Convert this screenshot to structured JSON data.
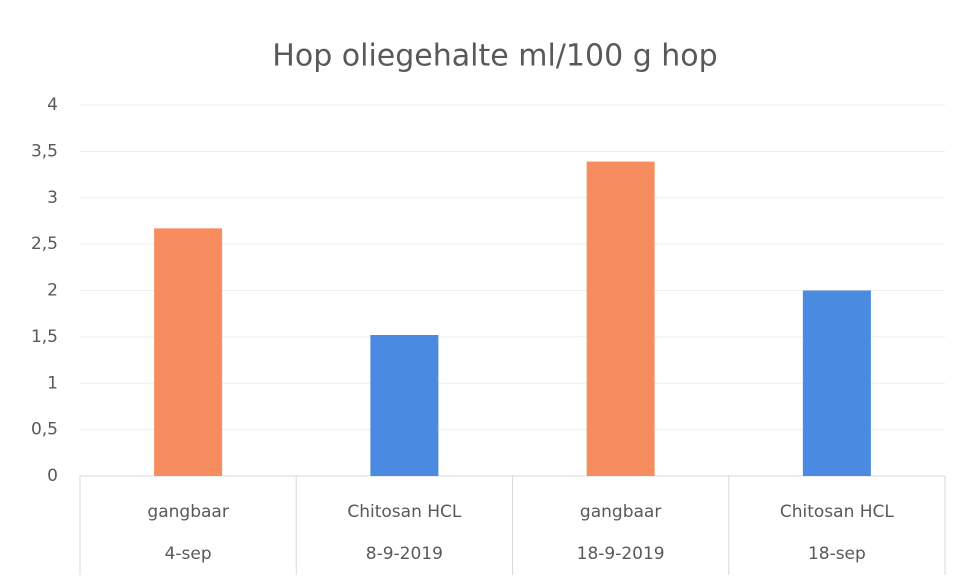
{
  "chart_data": {
    "type": "bar",
    "title": "Hop oliegehalte ml/100 g hop",
    "categories": [
      [
        "gangbaar",
        "4-sep"
      ],
      [
        "Chitosan HCL",
        "8-9-2019"
      ],
      [
        "gangbaar",
        "18-9-2019"
      ],
      [
        "Chitosan HCL",
        "18-sep"
      ]
    ],
    "values": [
      2.67,
      1.52,
      3.39,
      2.0
    ],
    "colors": [
      "#f78d5e",
      "#4a8ae0",
      "#f78d5e",
      "#4a8ae0"
    ],
    "ylim": [
      0,
      4
    ],
    "yticks": [
      0,
      {
        "value": 0.5,
        "label": "0,5"
      },
      1,
      {
        "value": 1.5,
        "label": "1,5"
      },
      2,
      {
        "value": 2.5,
        "label": "2,5"
      },
      3,
      {
        "value": 3.5,
        "label": "3,5"
      },
      4
    ],
    "grid": true
  }
}
